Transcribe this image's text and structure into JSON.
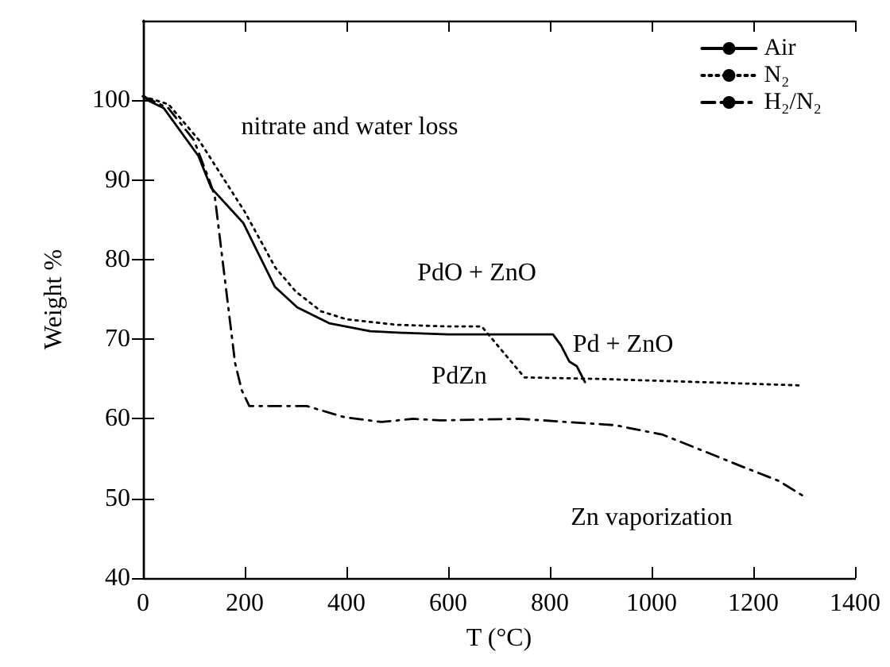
{
  "chart_data": {
    "type": "line",
    "xlabel": "T (°C)",
    "ylabel": "Weight %",
    "xlim": [
      0,
      1400
    ],
    "xticks": [
      0,
      200,
      400,
      600,
      800,
      1000,
      1200,
      1400
    ],
    "ylim": [
      40,
      110
    ],
    "yticks": [
      40,
      50,
      60,
      70,
      80,
      90,
      100
    ],
    "grid": false,
    "legend": "top right",
    "marker": "none",
    "series": [
      {
        "name": "Air",
        "color": "#000000",
        "line_style": "solid",
        "x": [
          0,
          9,
          41,
          109,
          134,
          197,
          228,
          259,
          303,
          366,
          447,
          509,
          600,
          700,
          806,
          822,
          838,
          853,
          869
        ],
        "values": [
          100.5,
          100,
          99,
          93,
          89,
          84.6,
          80.6,
          76.6,
          74,
          72,
          71,
          70.8,
          70.6,
          70.6,
          70.6,
          69.2,
          67.2,
          66.6,
          64.6
        ]
      },
      {
        "name": "N₂",
        "color": "#000000",
        "line_style": "dotted",
        "x": [
          0,
          50,
          110,
          200,
          230,
          260,
          300,
          350,
          400,
          500,
          600,
          666,
          700,
          750,
          900,
          1100,
          1290
        ],
        "values": [
          100.5,
          99.5,
          95,
          86,
          82.5,
          79,
          76,
          73.5,
          72.5,
          71.8,
          71.6,
          71.6,
          69,
          65.2,
          65,
          64.6,
          64.2
        ]
      },
      {
        "name": "H₂/N₂",
        "color": "#000000",
        "line_style": "dashed",
        "x": [
          0,
          50,
          100,
          130,
          141,
          160,
          181,
          194,
          209,
          259,
          322,
          396,
          469,
          531,
          584,
          740,
          928,
          1022,
          1116,
          1178,
          1250,
          1306
        ],
        "values": [
          100.5,
          99,
          95,
          90,
          88,
          78,
          67,
          63.6,
          61.6,
          61.6,
          61.6,
          60.2,
          59.6,
          60,
          59.8,
          60,
          59.2,
          58,
          55.6,
          54,
          52.2,
          50
        ]
      }
    ],
    "annotations": [
      "nitrate and water loss",
      "PdO + ZnO",
      "Pd + ZnO",
      "PdZn",
      "Zn vaporization"
    ]
  }
}
